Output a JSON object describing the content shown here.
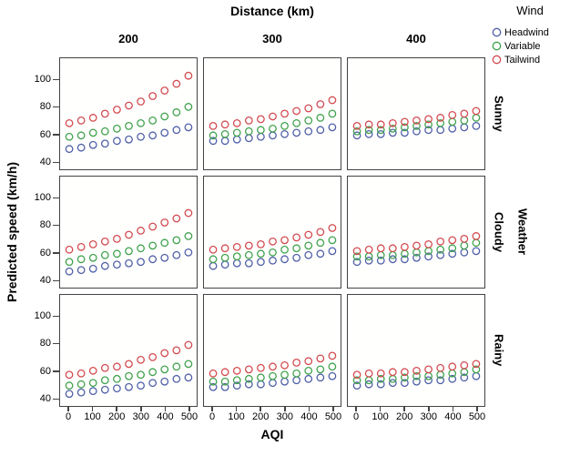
{
  "chart_data": {
    "type": "scatter",
    "facet_col_title": "Distance (km)",
    "facet_col_values": [
      "200",
      "300",
      "400"
    ],
    "facet_row_title": "Weather",
    "facet_row_values": [
      "Sunny",
      "Cloudy",
      "Rainy"
    ],
    "xlabel": "AQI",
    "ylabel": "Predicted speed (km/h)",
    "x_ticks": [
      0,
      100,
      200,
      300,
      400,
      500
    ],
    "y_ticks": [
      100,
      80,
      60,
      40
    ],
    "xlim": [
      -38,
      534
    ],
    "ylim": [
      33,
      116
    ],
    "marker": "open-circle",
    "grid": "off",
    "x": [
      0,
      50,
      100,
      150,
      200,
      250,
      300,
      350,
      400,
      450,
      500
    ],
    "legend": {
      "title": "Wind",
      "position": "top-right",
      "entries": [
        {
          "label": "Headwind",
          "color": "#4e5ea6"
        },
        {
          "label": "Variable",
          "color": "#3fa14c"
        },
        {
          "label": "Tailwind",
          "color": "#d2494f"
        }
      ]
    },
    "panels": [
      {
        "row": "Sunny",
        "col": "200",
        "series": {
          "Headwind": [
            49,
            50,
            52,
            53,
            55,
            56,
            58,
            59,
            61,
            63,
            65
          ],
          "Variable": [
            58,
            59,
            61,
            62,
            64,
            66,
            68,
            70,
            73,
            76,
            80
          ],
          "Tailwind": [
            68,
            70,
            72,
            75,
            78,
            81,
            84,
            88,
            92,
            97,
            103
          ]
        }
      },
      {
        "row": "Sunny",
        "col": "300",
        "series": {
          "Headwind": [
            55,
            55,
            56,
            57,
            58,
            59,
            60,
            61,
            62,
            63,
            65
          ],
          "Variable": [
            59,
            60,
            61,
            62,
            63,
            64,
            66,
            68,
            70,
            72,
            75
          ],
          "Tailwind": [
            66,
            67,
            68,
            70,
            71,
            73,
            75,
            77,
            79,
            82,
            85
          ]
        }
      },
      {
        "row": "Sunny",
        "col": "400",
        "series": {
          "Headwind": [
            59,
            60,
            60,
            61,
            61,
            62,
            63,
            63,
            64,
            65,
            66
          ],
          "Variable": [
            62,
            63,
            63,
            64,
            65,
            66,
            67,
            68,
            69,
            70,
            72
          ],
          "Tailwind": [
            66,
            67,
            67,
            68,
            69,
            70,
            71,
            72,
            74,
            75,
            77
          ]
        }
      },
      {
        "row": "Cloudy",
        "col": "200",
        "series": {
          "Headwind": [
            46,
            47,
            48,
            50,
            51,
            52,
            53,
            55,
            56,
            58,
            60
          ],
          "Variable": [
            53,
            55,
            56,
            58,
            59,
            61,
            63,
            65,
            67,
            69,
            72
          ],
          "Tailwind": [
            62,
            64,
            66,
            68,
            70,
            73,
            76,
            79,
            82,
            85,
            89
          ]
        }
      },
      {
        "row": "Cloudy",
        "col": "300",
        "series": {
          "Headwind": [
            50,
            51,
            52,
            52,
            53,
            54,
            55,
            56,
            58,
            59,
            61
          ],
          "Variable": [
            55,
            56,
            57,
            58,
            59,
            60,
            62,
            63,
            65,
            67,
            69
          ],
          "Tailwind": [
            62,
            63,
            64,
            65,
            66,
            68,
            69,
            71,
            73,
            75,
            78
          ]
        }
      },
      {
        "row": "Cloudy",
        "col": "400",
        "series": {
          "Headwind": [
            53,
            54,
            54,
            55,
            55,
            56,
            57,
            58,
            59,
            60,
            61
          ],
          "Variable": [
            57,
            57,
            58,
            58,
            59,
            60,
            61,
            62,
            63,
            65,
            67
          ],
          "Tailwind": [
            61,
            62,
            63,
            63,
            64,
            65,
            66,
            68,
            69,
            70,
            72
          ]
        }
      },
      {
        "row": "Rainy",
        "col": "200",
        "series": {
          "Headwind": [
            43,
            44,
            45,
            46,
            47,
            48,
            49,
            51,
            52,
            54,
            55
          ],
          "Variable": [
            49,
            50,
            51,
            53,
            54,
            56,
            57,
            59,
            61,
            63,
            65
          ],
          "Tailwind": [
            57,
            58,
            60,
            62,
            63,
            65,
            68,
            70,
            73,
            75,
            79
          ]
        }
      },
      {
        "row": "Rainy",
        "col": "300",
        "series": {
          "Headwind": [
            48,
            48,
            49,
            50,
            50,
            51,
            52,
            53,
            54,
            55,
            56
          ],
          "Variable": [
            52,
            52,
            53,
            54,
            55,
            56,
            57,
            58,
            60,
            61,
            63
          ],
          "Tailwind": [
            58,
            59,
            60,
            61,
            62,
            63,
            64,
            66,
            67,
            69,
            71
          ]
        }
      },
      {
        "row": "Rainy",
        "col": "400",
        "series": {
          "Headwind": [
            49,
            50,
            50,
            51,
            51,
            52,
            53,
            53,
            54,
            55,
            56
          ],
          "Variable": [
            53,
            53,
            54,
            54,
            55,
            56,
            56,
            57,
            58,
            59,
            61
          ],
          "Tailwind": [
            57,
            58,
            58,
            59,
            59,
            60,
            61,
            62,
            63,
            64,
            65
          ]
        }
      }
    ]
  }
}
